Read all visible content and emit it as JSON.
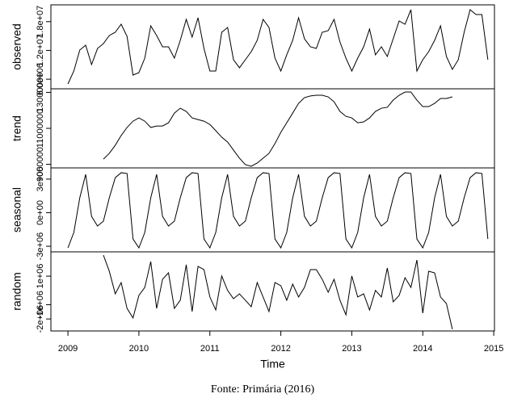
{
  "caption": "Fonte: Primária (2016)",
  "chart_data": [
    {
      "type": "line",
      "ylabel": "observed",
      "xlim": [
        2008.76,
        2015.01
      ],
      "ylim": [
        4000000,
        21500000
      ],
      "yticks": [
        {
          "value": 6000000,
          "label": "6.0e+06"
        },
        {
          "value": 12000000,
          "label": "1.2e+07"
        },
        {
          "value": 18000000,
          "label": "1.8e+07"
        }
      ],
      "x": [
        2009,
        2009.083,
        2009.167,
        2009.25,
        2009.333,
        2009.417,
        2009.5,
        2009.583,
        2009.667,
        2009.75,
        2009.833,
        2009.917,
        2010,
        2010.083,
        2010.167,
        2010.25,
        2010.333,
        2010.417,
        2010.5,
        2010.583,
        2010.667,
        2010.75,
        2010.833,
        2010.917,
        2011,
        2011.083,
        2011.167,
        2011.25,
        2011.333,
        2011.417,
        2011.5,
        2011.583,
        2011.667,
        2011.75,
        2011.833,
        2011.917,
        2012,
        2012.083,
        2012.167,
        2012.25,
        2012.333,
        2012.417,
        2012.5,
        2012.583,
        2012.667,
        2012.75,
        2012.833,
        2012.917,
        2013,
        2013.083,
        2013.167,
        2013.25,
        2013.333,
        2013.417,
        2013.5,
        2013.583,
        2013.667,
        2013.75,
        2013.833,
        2013.917,
        2014,
        2014.083,
        2014.167,
        2014.25,
        2014.333,
        2014.417,
        2014.5,
        2014.583,
        2014.667,
        2014.75,
        2014.833,
        2014.917
      ],
      "values": [
        5010000,
        7700000,
        12080000,
        13090000,
        9050000,
        12410000,
        13420000,
        15110000,
        15780000,
        17460000,
        14940000,
        6860000,
        7370000,
        10390000,
        17130000,
        15110000,
        12750000,
        12750000,
        10390000,
        14100000,
        18470000,
        14770000,
        18810000,
        12410000,
        7700000,
        7700000,
        15780000,
        16790000,
        10060000,
        8380000,
        10060000,
        11740000,
        14100000,
        18470000,
        16790000,
        10390000,
        7700000,
        11070000,
        14100000,
        18810000,
        14430000,
        12750000,
        12410000,
        15780000,
        16120000,
        18470000,
        13760000,
        10390000,
        7700000,
        10390000,
        12750000,
        16450000,
        11070000,
        12750000,
        10730000,
        14430000,
        18140000,
        17460000,
        20490000,
        7700000,
        10060000,
        11740000,
        14100000,
        17130000,
        10730000,
        8040000,
        10060000,
        15780000,
        20490000,
        19480000,
        19480000,
        10060000
      ]
    },
    {
      "type": "line",
      "ylabel": "trend",
      "xlim": [
        2008.76,
        2015.01
      ],
      "ylim": [
        8800000,
        13200000
      ],
      "yticks": [
        9000000,
        11000000,
        13000000
      ],
      "x": [
        2009.5,
        2009.583,
        2009.667,
        2009.75,
        2009.833,
        2009.917,
        2010,
        2010.083,
        2010.167,
        2010.25,
        2010.333,
        2010.417,
        2010.5,
        2010.583,
        2010.667,
        2010.75,
        2010.833,
        2010.917,
        2011,
        2011.083,
        2011.167,
        2011.25,
        2011.333,
        2011.417,
        2011.5,
        2011.583,
        2011.667,
        2011.75,
        2011.833,
        2011.917,
        2012,
        2012.083,
        2012.167,
        2012.25,
        2012.333,
        2012.417,
        2012.5,
        2012.583,
        2012.667,
        2012.75,
        2012.833,
        2012.917,
        2013,
        2013.083,
        2013.167,
        2013.25,
        2013.333,
        2013.417,
        2013.5,
        2013.583,
        2013.667,
        2013.75,
        2013.833,
        2013.917,
        2014,
        2014.083,
        2014.167,
        2014.25,
        2014.333,
        2014.417
      ],
      "values": [
        9290000,
        9610000,
        10060000,
        10600000,
        11050000,
        11400000,
        11580000,
        11400000,
        11050000,
        11130000,
        11130000,
        11310000,
        11850000,
        12120000,
        11940000,
        11580000,
        11490000,
        11400000,
        11220000,
        10870000,
        10510000,
        10240000,
        9790000,
        9340000,
        8980000,
        8890000,
        9070000,
        9340000,
        9610000,
        10150000,
        10780000,
        11310000,
        11850000,
        12390000,
        12710000,
        12800000,
        12840000,
        12840000,
        12750000,
        12480000,
        11940000,
        11670000,
        11580000,
        11310000,
        11360000,
        11580000,
        11940000,
        12120000,
        12170000,
        12570000,
        12840000,
        13020000,
        13020000,
        12570000,
        12210000,
        12210000,
        12390000,
        12660000,
        12660000,
        12750000
      ]
    },
    {
      "type": "line",
      "ylabel": "seasonal",
      "xlim": [
        2008.76,
        2015.01
      ],
      "ylim": [
        -3500000,
        4000000
      ],
      "yticks": [
        {
          "value": -3000000,
          "label": "-3e+06"
        },
        {
          "value": 0,
          "label": "0e+00"
        },
        {
          "value": 3000000,
          "label": "3e+06"
        }
      ],
      "x": [
        2009,
        2009.083,
        2009.167,
        2009.25,
        2009.333,
        2009.417,
        2009.5,
        2009.583,
        2009.667,
        2009.75,
        2009.833,
        2009.917,
        2010,
        2010.083,
        2010.167,
        2010.25,
        2010.333,
        2010.417,
        2010.5,
        2010.583,
        2010.667,
        2010.75,
        2010.833,
        2010.917,
        2011,
        2011.083,
        2011.167,
        2011.25,
        2011.333,
        2011.417,
        2011.5,
        2011.583,
        2011.667,
        2011.75,
        2011.833,
        2011.917,
        2012,
        2012.083,
        2012.167,
        2012.25,
        2012.333,
        2012.417,
        2012.5,
        2012.583,
        2012.667,
        2012.75,
        2012.833,
        2012.917,
        2013,
        2013.083,
        2013.167,
        2013.25,
        2013.333,
        2013.417,
        2013.5,
        2013.583,
        2013.667,
        2013.75,
        2013.833,
        2013.917,
        2014,
        2014.083,
        2014.167,
        2014.25,
        2014.333,
        2014.417,
        2014.5,
        2014.583,
        2014.667,
        2014.75,
        2014.833,
        2014.917
      ],
      "values": [
        -3140000,
        -1770000,
        1330000,
        3420000,
        -330000,
        -1190000,
        -760000,
        1330000,
        3130000,
        3570000,
        3500000,
        -2350000,
        -3140000,
        -1770000,
        1330000,
        3420000,
        -330000,
        -1190000,
        -760000,
        1330000,
        3130000,
        3570000,
        3500000,
        -2350000,
        -3140000,
        -1770000,
        1330000,
        3420000,
        -330000,
        -1190000,
        -760000,
        1330000,
        3130000,
        3570000,
        3500000,
        -2350000,
        -3140000,
        -1770000,
        1330000,
        3420000,
        -330000,
        -1190000,
        -760000,
        1330000,
        3130000,
        3570000,
        3500000,
        -2350000,
        -3140000,
        -1770000,
        1330000,
        3420000,
        -330000,
        -1190000,
        -760000,
        1330000,
        3130000,
        3570000,
        3500000,
        -2350000,
        -3140000,
        -1770000,
        1330000,
        3420000,
        -330000,
        -1190000,
        -760000,
        1330000,
        3130000,
        3570000,
        3500000,
        -2350000
      ]
    },
    {
      "type": "line",
      "ylabel": "random",
      "xlabel": "Time",
      "xlim": [
        2008.76,
        2015.01
      ],
      "xticks": [
        2009,
        2010,
        2011,
        2012,
        2013,
        2014,
        2015
      ],
      "ylim": [
        -2840000,
        2700000
      ],
      "yticks": [
        {
          "value": -2000000,
          "label": "-2e+06"
        },
        {
          "value": -1000000,
          "label": "-1e+06"
        },
        {
          "value": 1000000,
          "label": "1e+06"
        }
      ],
      "x": [
        2009.5,
        2009.583,
        2009.667,
        2009.75,
        2009.833,
        2009.917,
        2010,
        2010.083,
        2010.167,
        2010.25,
        2010.333,
        2010.417,
        2010.5,
        2010.583,
        2010.667,
        2010.75,
        2010.833,
        2010.917,
        2011,
        2011.083,
        2011.167,
        2011.25,
        2011.333,
        2011.417,
        2011.5,
        2011.583,
        2011.667,
        2011.75,
        2011.833,
        2011.917,
        2012,
        2012.083,
        2012.167,
        2012.25,
        2012.333,
        2012.417,
        2012.5,
        2012.583,
        2012.667,
        2012.75,
        2012.833,
        2012.917,
        2013,
        2013.083,
        2013.167,
        2013.25,
        2013.333,
        2013.417,
        2013.5,
        2013.583,
        2013.667,
        2013.75,
        2013.833,
        2013.917,
        2014,
        2014.083,
        2014.167,
        2014.25,
        2014.333,
        2014.417
      ],
      "values": [
        2470000,
        1340000,
        -240000,
        550000,
        -1260000,
        -1930000,
        -350000,
        210000,
        2020000,
        -1260000,
        780000,
        1230000,
        -1260000,
        -690000,
        1800000,
        -1480000,
        1680000,
        1460000,
        -460000,
        -1370000,
        1010000,
        0,
        -580000,
        -240000,
        -690000,
        -1140000,
        550000,
        -460000,
        -1480000,
        550000,
        330000,
        -690000,
        440000,
        -460000,
        210000,
        1460000,
        1460000,
        780000,
        -130000,
        780000,
        -690000,
        -1710000,
        1010000,
        -460000,
        -240000,
        -1370000,
        0,
        -460000,
        1570000,
        -800000,
        -350000,
        890000,
        210000,
        2130000,
        -1590000,
        1340000,
        1230000,
        -460000,
        -920000,
        -2720000
      ]
    }
  ]
}
